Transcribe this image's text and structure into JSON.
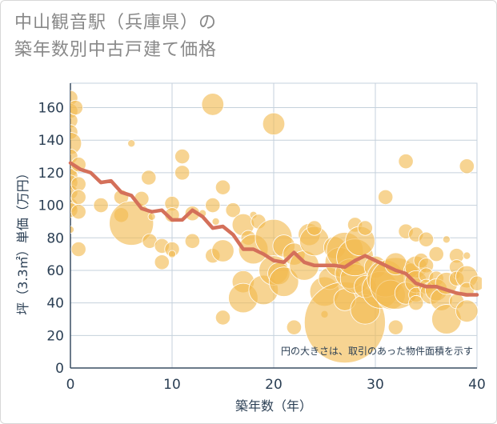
{
  "title": {
    "line1": "中山観音駅（兵庫県）の",
    "line2": "築年数別中古戸建て価格"
  },
  "colors": {
    "bubble": "#f2b94f",
    "line": "#d4705a",
    "grid": "#c5d1dc",
    "text": "#2b3f54"
  },
  "chart_data": {
    "type": "scatter",
    "xlabel": "築年数（年）",
    "ylabel": "坪（3.3㎡）単価（万円）",
    "xlim": [
      0,
      40
    ],
    "ylim": [
      0,
      175
    ],
    "x_ticks": [
      0,
      10,
      20,
      30,
      40
    ],
    "y_ticks": [
      0,
      20,
      40,
      60,
      80,
      100,
      120,
      140,
      160
    ],
    "grid": true,
    "note": "円の大きさは、取引のあった物件面積を示す",
    "bubbles": [
      {
        "x": 0,
        "y": 166,
        "s": 2
      },
      {
        "x": 0,
        "y": 158,
        "s": 2
      },
      {
        "x": 0,
        "y": 152,
        "s": 2
      },
      {
        "x": 0,
        "y": 145,
        "s": 2
      },
      {
        "x": 0,
        "y": 138,
        "s": 3
      },
      {
        "x": 0,
        "y": 130,
        "s": 2
      },
      {
        "x": 0,
        "y": 122,
        "s": 2
      },
      {
        "x": 0,
        "y": 118,
        "s": 2
      },
      {
        "x": 0,
        "y": 114,
        "s": 2
      },
      {
        "x": 0,
        "y": 108,
        "s": 2
      },
      {
        "x": 0,
        "y": 100,
        "s": 2
      },
      {
        "x": 0,
        "y": 97,
        "s": 2
      },
      {
        "x": 0,
        "y": 85,
        "s": 1
      },
      {
        "x": 0.5,
        "y": 160,
        "s": 2
      },
      {
        "x": 0.8,
        "y": 125,
        "s": 2
      },
      {
        "x": 0.8,
        "y": 113,
        "s": 2
      },
      {
        "x": 0.8,
        "y": 105,
        "s": 2
      },
      {
        "x": 0.8,
        "y": 96,
        "s": 2
      },
      {
        "x": 0.8,
        "y": 73,
        "s": 2
      },
      {
        "x": 3,
        "y": 100,
        "s": 2
      },
      {
        "x": 5,
        "y": 105,
        "s": 2
      },
      {
        "x": 5,
        "y": 94,
        "s": 2
      },
      {
        "x": 6,
        "y": 138,
        "s": 1
      },
      {
        "x": 6,
        "y": 89,
        "s": 6
      },
      {
        "x": 7,
        "y": 104,
        "s": 2
      },
      {
        "x": 7.7,
        "y": 117,
        "s": 2
      },
      {
        "x": 7.8,
        "y": 78,
        "s": 2
      },
      {
        "x": 8,
        "y": 93,
        "s": 1
      },
      {
        "x": 9,
        "y": 75,
        "s": 2
      },
      {
        "x": 9,
        "y": 65,
        "s": 2
      },
      {
        "x": 10,
        "y": 101,
        "s": 2
      },
      {
        "x": 10,
        "y": 94,
        "s": 2
      },
      {
        "x": 10,
        "y": 73,
        "s": 2
      },
      {
        "x": 10,
        "y": 70,
        "s": 1
      },
      {
        "x": 11,
        "y": 130,
        "s": 2
      },
      {
        "x": 11,
        "y": 120,
        "s": 2
      },
      {
        "x": 12,
        "y": 78,
        "s": 2
      },
      {
        "x": 12,
        "y": 95,
        "s": 2
      },
      {
        "x": 13,
        "y": 95,
        "s": 1
      },
      {
        "x": 14,
        "y": 162,
        "s": 3
      },
      {
        "x": 14,
        "y": 100,
        "s": 2
      },
      {
        "x": 14,
        "y": 69,
        "s": 2
      },
      {
        "x": 14.3,
        "y": 90,
        "s": 1
      },
      {
        "x": 15,
        "y": 111,
        "s": 2
      },
      {
        "x": 15,
        "y": 72,
        "s": 3
      },
      {
        "x": 15,
        "y": 31,
        "s": 2
      },
      {
        "x": 16,
        "y": 97,
        "s": 2
      },
      {
        "x": 17,
        "y": 88,
        "s": 3
      },
      {
        "x": 17,
        "y": 53,
        "s": 3
      },
      {
        "x": 17,
        "y": 43,
        "s": 4
      },
      {
        "x": 17.5,
        "y": 80,
        "s": 2
      },
      {
        "x": 18,
        "y": 94,
        "s": 1
      },
      {
        "x": 18,
        "y": 73,
        "s": 4
      },
      {
        "x": 18.5,
        "y": 90,
        "s": 2
      },
      {
        "x": 19,
        "y": 48,
        "s": 4
      },
      {
        "x": 20,
        "y": 150,
        "s": 3
      },
      {
        "x": 20,
        "y": 80,
        "s": 5
      },
      {
        "x": 20,
        "y": 60,
        "s": 4
      },
      {
        "x": 20.5,
        "y": 58,
        "s": 3
      },
      {
        "x": 21,
        "y": 75,
        "s": 3
      },
      {
        "x": 21,
        "y": 53,
        "s": 4
      },
      {
        "x": 22,
        "y": 25,
        "s": 2
      },
      {
        "x": 22,
        "y": 70,
        "s": 3
      },
      {
        "x": 23,
        "y": 63,
        "s": 4
      },
      {
        "x": 23.5,
        "y": 82,
        "s": 3
      },
      {
        "x": 24,
        "y": 78,
        "s": 4
      },
      {
        "x": 24,
        "y": 86,
        "s": 2
      },
      {
        "x": 25,
        "y": 47,
        "s": 4
      },
      {
        "x": 25,
        "y": 33,
        "s": 1
      },
      {
        "x": 25.5,
        "y": 55,
        "s": 3
      },
      {
        "x": 26,
        "y": 74,
        "s": 3
      },
      {
        "x": 26.5,
        "y": 65,
        "s": 4
      },
      {
        "x": 27,
        "y": 28,
        "s": 11
      },
      {
        "x": 27,
        "y": 72,
        "s": 5
      },
      {
        "x": 27,
        "y": 42,
        "s": 3
      },
      {
        "x": 27.5,
        "y": 58,
        "s": 4
      },
      {
        "x": 28,
        "y": 88,
        "s": 2
      },
      {
        "x": 28,
        "y": 55,
        "s": 4
      },
      {
        "x": 28,
        "y": 68,
        "s": 5
      },
      {
        "x": 28.5,
        "y": 78,
        "s": 4
      },
      {
        "x": 29,
        "y": 36,
        "s": 4
      },
      {
        "x": 29,
        "y": 86,
        "s": 2
      },
      {
        "x": 29,
        "y": 50,
        "s": 3
      },
      {
        "x": 30,
        "y": 62,
        "s": 3
      },
      {
        "x": 30.5,
        "y": 48,
        "s": 5
      },
      {
        "x": 31,
        "y": 105,
        "s": 2
      },
      {
        "x": 31,
        "y": 55,
        "s": 5
      },
      {
        "x": 31.5,
        "y": 45,
        "s": 4
      },
      {
        "x": 32,
        "y": 52,
        "s": 7
      },
      {
        "x": 32,
        "y": 25,
        "s": 2
      },
      {
        "x": 32,
        "y": 64,
        "s": 3
      },
      {
        "x": 33,
        "y": 127,
        "s": 2
      },
      {
        "x": 33,
        "y": 84,
        "s": 2
      },
      {
        "x": 33,
        "y": 46,
        "s": 3
      },
      {
        "x": 33.5,
        "y": 60,
        "s": 2
      },
      {
        "x": 34,
        "y": 82,
        "s": 2
      },
      {
        "x": 34,
        "y": 62,
        "s": 3
      },
      {
        "x": 34,
        "y": 53,
        "s": 3
      },
      {
        "x": 34,
        "y": 45,
        "s": 2
      },
      {
        "x": 34,
        "y": 40,
        "s": 2
      },
      {
        "x": 34.5,
        "y": 66,
        "s": 2
      },
      {
        "x": 35,
        "y": 79,
        "s": 2
      },
      {
        "x": 35,
        "y": 63,
        "s": 2
      },
      {
        "x": 35,
        "y": 57,
        "s": 2
      },
      {
        "x": 35,
        "y": 50,
        "s": 2
      },
      {
        "x": 35.5,
        "y": 46,
        "s": 3
      },
      {
        "x": 36,
        "y": 70,
        "s": 2
      },
      {
        "x": 36,
        "y": 55,
        "s": 2
      },
      {
        "x": 36,
        "y": 48,
        "s": 3
      },
      {
        "x": 36.5,
        "y": 42,
        "s": 3
      },
      {
        "x": 37,
        "y": 79,
        "s": 1
      },
      {
        "x": 37,
        "y": 30,
        "s": 4
      },
      {
        "x": 37,
        "y": 52,
        "s": 3
      },
      {
        "x": 38,
        "y": 69,
        "s": 2
      },
      {
        "x": 38,
        "y": 62,
        "s": 2
      },
      {
        "x": 38,
        "y": 57,
        "s": 1
      },
      {
        "x": 38,
        "y": 55,
        "s": 2
      },
      {
        "x": 38,
        "y": 41,
        "s": 2
      },
      {
        "x": 39,
        "y": 124,
        "s": 2
      },
      {
        "x": 39,
        "y": 69,
        "s": 1
      },
      {
        "x": 39,
        "y": 56,
        "s": 3
      },
      {
        "x": 39,
        "y": 48,
        "s": 2
      },
      {
        "x": 39,
        "y": 35,
        "s": 3
      },
      {
        "x": 40,
        "y": 52,
        "s": 2
      }
    ],
    "series": [
      {
        "x": [
          0,
          1,
          2,
          3,
          4,
          5,
          6,
          7,
          8,
          9,
          10,
          11,
          12,
          13,
          14,
          15,
          16,
          17,
          18,
          19,
          20,
          21,
          22,
          23,
          24,
          25,
          26,
          27,
          28,
          29,
          30,
          31,
          32,
          33,
          34,
          35,
          36,
          37,
          38,
          39,
          40
        ],
        "y": [
          126,
          122,
          120,
          114,
          115,
          108,
          106,
          98,
          96,
          97,
          91,
          91,
          97,
          93,
          86,
          87,
          82,
          73,
          73,
          70,
          66,
          65,
          71,
          65,
          63,
          63,
          63,
          62,
          66,
          69,
          66,
          63,
          60,
          58,
          52,
          50,
          50,
          48,
          46,
          45,
          45
        ]
      }
    ]
  }
}
